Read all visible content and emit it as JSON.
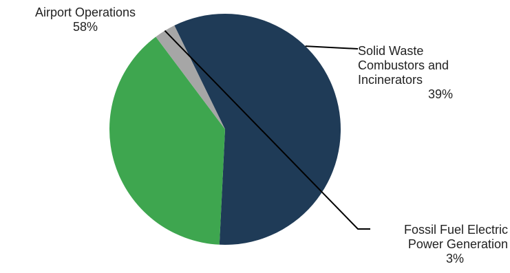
{
  "chart_data": {
    "type": "pie",
    "slices": [
      {
        "label_lines": [
          "Airport Operations"
        ],
        "value": 58,
        "value_label": "58%",
        "color": "#1f3b57"
      },
      {
        "label_lines": [
          "Solid Waste",
          "Combustors and",
          "Incinerators"
        ],
        "value": 39,
        "value_label": "39%",
        "color": "#3ea64f"
      },
      {
        "label_lines": [
          "Fossil Fuel Electric",
          "Power Generation"
        ],
        "value": 3,
        "value_label": "3%",
        "color": "#a6a6a6"
      }
    ],
    "start_angle_deg": -26,
    "direction": "clockwise",
    "legend": "none",
    "leader_color": "#000000"
  }
}
